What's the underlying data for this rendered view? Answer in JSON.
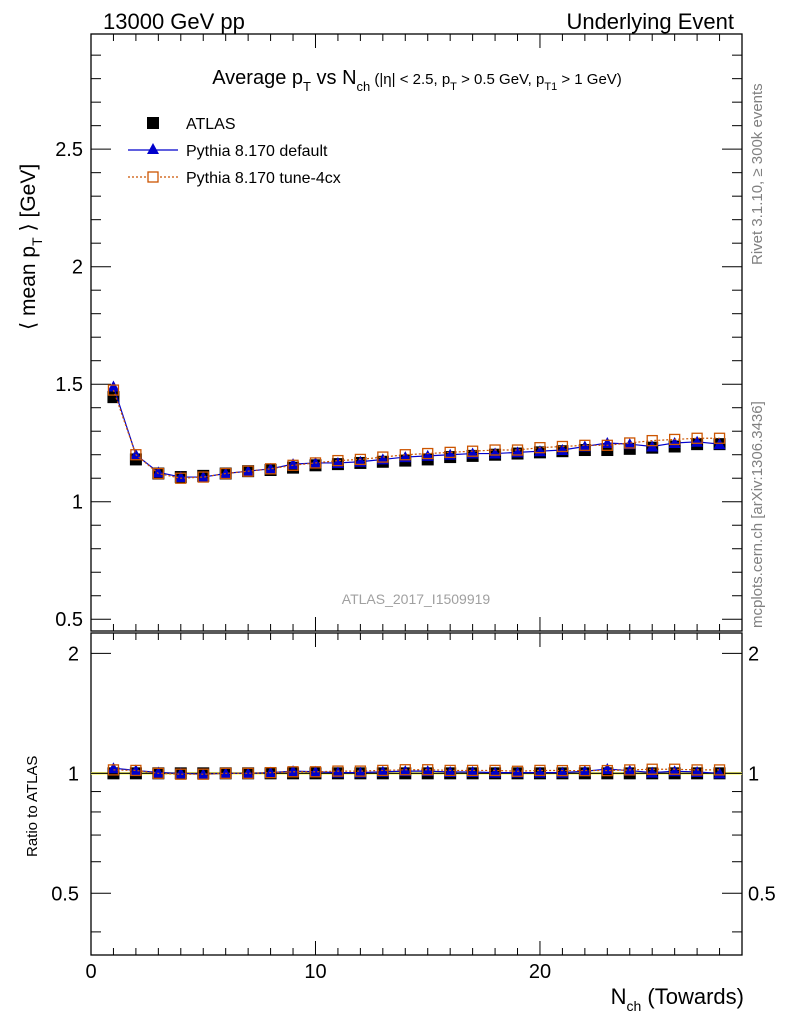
{
  "header": {
    "left": "13000 GeV pp",
    "right": "Underlying Event"
  },
  "side_labels": {
    "rivet": "Rivet 3.1.10, ≥ 300k events",
    "mcplots": "mcplots.cern.ch [arXiv:1306.3436]"
  },
  "watermark": "ATLAS_2017_I1509919",
  "chart_data": {
    "type": "scatter",
    "title_main": "Average p",
    "title_main_sub": "T",
    "title_vs": " vs N",
    "title_vs_sub": "ch",
    "title_cut_1": " (|η| < 2.5, p",
    "title_cut_1_sub": "T",
    "title_cut_2": " > 0.5 GeV, p",
    "title_cut_2_sub": "T1",
    "title_cut_3": " > 1 GeV)",
    "ylabel_pre": "⟨ mean p",
    "ylabel_sub": "T",
    "ylabel_post": " ⟩ [GeV]",
    "xlabel_main": "N",
    "xlabel_sub": "ch",
    "xlabel_post": " (Towards)",
    "ratio_ylabel": "Ratio to ATLAS",
    "xlim": [
      0,
      29
    ],
    "ylim": [
      0.45,
      2.99
    ],
    "ratio_ylim": [
      0.35,
      2.25
    ],
    "xticks": [
      "0",
      "10",
      "20"
    ],
    "xtick_values": [
      0,
      10,
      20
    ],
    "yticks": [
      "0.5",
      "1",
      "1.5",
      "2",
      "2.5"
    ],
    "ytick_values": [
      0.5,
      1,
      1.5,
      2,
      2.5
    ],
    "ratio_yticks": [
      "0.5",
      "1",
      "2"
    ],
    "ratio_ytick_values": [
      0.5,
      1,
      2
    ],
    "legend_position": "top-left",
    "x": [
      1,
      2,
      3,
      4,
      5,
      6,
      7,
      8,
      9,
      10,
      11,
      12,
      13,
      14,
      15,
      16,
      17,
      18,
      19,
      20,
      21,
      22,
      23,
      24,
      25,
      26,
      27,
      28
    ],
    "series": [
      {
        "name": "ATLAS",
        "color": "#000000",
        "marker": "square",
        "values": [
          1.445,
          1.18,
          1.12,
          1.105,
          1.11,
          1.12,
          1.13,
          1.135,
          1.145,
          1.155,
          1.16,
          1.165,
          1.17,
          1.175,
          1.18,
          1.19,
          1.195,
          1.2,
          1.205,
          1.21,
          1.215,
          1.22,
          1.22,
          1.225,
          1.23,
          1.235,
          1.245,
          1.245
        ],
        "ratio": [
          1,
          1,
          1,
          1,
          1,
          1,
          1,
          1,
          1,
          1,
          1,
          1,
          1,
          1,
          1,
          1,
          1,
          1,
          1,
          1,
          1,
          1,
          1,
          1,
          1,
          1,
          1,
          1
        ]
      },
      {
        "name": "Pythia 8.170 default",
        "color": "#0000cc",
        "marker": "triangle",
        "values": [
          1.49,
          1.2,
          1.125,
          1.105,
          1.105,
          1.12,
          1.13,
          1.14,
          1.16,
          1.165,
          1.165,
          1.17,
          1.18,
          1.19,
          1.195,
          1.2,
          1.205,
          1.205,
          1.21,
          1.215,
          1.22,
          1.235,
          1.25,
          1.245,
          1.235,
          1.25,
          1.255,
          1.245
        ],
        "ratio": [
          1.03,
          1.017,
          1.005,
          1.0,
          0.995,
          1.0,
          1.0,
          1.004,
          1.013,
          1.009,
          1.004,
          1.004,
          1.009,
          1.013,
          1.013,
          1.008,
          1.008,
          1.004,
          1.004,
          1.004,
          1.004,
          1.012,
          1.025,
          1.016,
          1.004,
          1.012,
          1.008,
          1.0
        ]
      },
      {
        "name": "Pythia 8.170 tune-4cx",
        "color": "#cc5500",
        "marker": "open-square",
        "values": [
          1.475,
          1.2,
          1.12,
          1.1,
          1.105,
          1.12,
          1.13,
          1.14,
          1.155,
          1.165,
          1.175,
          1.18,
          1.19,
          1.2,
          1.205,
          1.21,
          1.215,
          1.22,
          1.22,
          1.23,
          1.235,
          1.24,
          1.24,
          1.25,
          1.26,
          1.265,
          1.27,
          1.27
        ],
        "ratio": [
          1.02,
          1.017,
          1.0,
          0.995,
          0.995,
          1.0,
          1.0,
          1.004,
          1.009,
          1.009,
          1.013,
          1.013,
          1.017,
          1.021,
          1.021,
          1.017,
          1.017,
          1.017,
          1.012,
          1.017,
          1.016,
          1.016,
          1.016,
          1.02,
          1.024,
          1.024,
          1.02,
          1.02
        ]
      }
    ]
  }
}
